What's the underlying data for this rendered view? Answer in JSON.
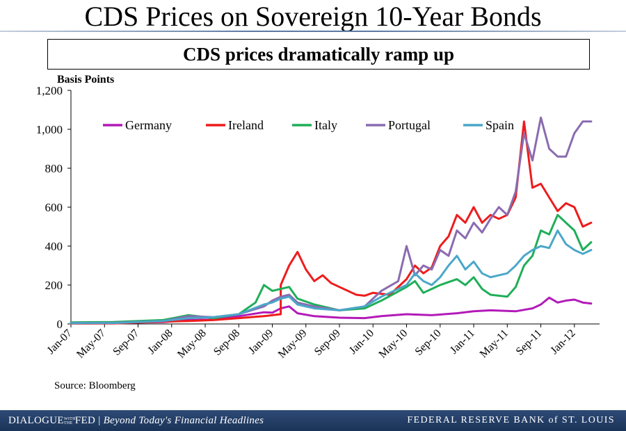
{
  "slide": {
    "title": "CDS Prices on Sovereign 10-Year Bonds",
    "subtitle": "CDS prices dramatically ramp up",
    "source": "Source: Bloomberg"
  },
  "footer": {
    "left_brand": "DIALOGUE",
    "left_small": "WITH THE",
    "left_brand2": "FED",
    "left_tagline": "Beyond Today's Financial Headlines",
    "right_text": "FEDERAL RESERVE BANK of ST. LOUIS"
  },
  "chart_data": {
    "type": "line",
    "title": "",
    "ylabel": "Basis Points",
    "xlabel": "",
    "ylim": [
      0,
      1200
    ],
    "yticks": [
      0,
      200,
      400,
      600,
      800,
      1000,
      1200
    ],
    "ytick_labels": [
      "0",
      "200",
      "400",
      "600",
      "800",
      "1,000",
      "1,200"
    ],
    "x_tick_labels": [
      "Jan-07",
      "May-07",
      "Sep-07",
      "Jan-08",
      "May-08",
      "Sep-08",
      "Jan-09",
      "May-09",
      "Sep-09",
      "Jan-10",
      "May-10",
      "Sep-10",
      "Jan-11",
      "May-11",
      "Sep-11",
      "Jan-12"
    ],
    "x_range": [
      "2007-01",
      "2012-03"
    ],
    "legend_position": "top",
    "grid": false,
    "series": [
      {
        "name": "Germany",
        "color": "#b31ab8",
        "points": [
          [
            "2007-01",
            5
          ],
          [
            "2007-06",
            6
          ],
          [
            "2007-12",
            10
          ],
          [
            "2008-03",
            20
          ],
          [
            "2008-06",
            22
          ],
          [
            "2008-09",
            40
          ],
          [
            "2008-12",
            60
          ],
          [
            "2009-01",
            58
          ],
          [
            "2009-02",
            80
          ],
          [
            "2009-03",
            90
          ],
          [
            "2009-04",
            55
          ],
          [
            "2009-06",
            40
          ],
          [
            "2009-09",
            32
          ],
          [
            "2009-12",
            30
          ],
          [
            "2010-02",
            40
          ],
          [
            "2010-05",
            50
          ],
          [
            "2010-08",
            45
          ],
          [
            "2010-11",
            55
          ],
          [
            "2011-01",
            65
          ],
          [
            "2011-03",
            70
          ],
          [
            "2011-06",
            65
          ],
          [
            "2011-08",
            80
          ],
          [
            "2011-09",
            100
          ],
          [
            "2011-10",
            135
          ],
          [
            "2011-11",
            110
          ],
          [
            "2011-12",
            120
          ],
          [
            "2012-01",
            125
          ],
          [
            "2012-02",
            110
          ],
          [
            "2012-03",
            105
          ]
        ]
      },
      {
        "name": "Ireland",
        "color": "#ee1c1c",
        "points": [
          [
            "2007-01",
            2
          ],
          [
            "2007-06",
            3
          ],
          [
            "2007-12",
            12
          ],
          [
            "2008-03",
            15
          ],
          [
            "2008-06",
            20
          ],
          [
            "2008-09",
            30
          ],
          [
            "2008-12",
            40
          ],
          [
            "2009-02",
            50
          ],
          [
            "2009-02",
            200
          ],
          [
            "2009-03",
            300
          ],
          [
            "2009-04",
            370
          ],
          [
            "2009-05",
            280
          ],
          [
            "2009-06",
            220
          ],
          [
            "2009-07",
            250
          ],
          [
            "2009-08",
            210
          ],
          [
            "2009-09",
            190
          ],
          [
            "2009-11",
            150
          ],
          [
            "2009-12",
            145
          ],
          [
            "2010-01",
            160
          ],
          [
            "2010-03",
            150
          ],
          [
            "2010-05",
            230
          ],
          [
            "2010-06",
            300
          ],
          [
            "2010-07",
            260
          ],
          [
            "2010-08",
            290
          ],
          [
            "2010-09",
            400
          ],
          [
            "2010-10",
            450
          ],
          [
            "2010-11",
            560
          ],
          [
            "2010-12",
            520
          ],
          [
            "2011-01",
            600
          ],
          [
            "2011-02",
            520
          ],
          [
            "2011-03",
            560
          ],
          [
            "2011-04",
            540
          ],
          [
            "2011-05",
            560
          ],
          [
            "2011-06",
            650
          ],
          [
            "2011-07",
            1040
          ],
          [
            "2011-08",
            700
          ],
          [
            "2011-09",
            720
          ],
          [
            "2011-10",
            650
          ],
          [
            "2011-11",
            580
          ],
          [
            "2011-12",
            620
          ],
          [
            "2012-01",
            600
          ],
          [
            "2012-02",
            500
          ],
          [
            "2012-03",
            520
          ]
        ]
      },
      {
        "name": "Italy",
        "color": "#1fae58",
        "points": [
          [
            "2007-01",
            8
          ],
          [
            "2007-06",
            10
          ],
          [
            "2007-12",
            20
          ],
          [
            "2008-03",
            45
          ],
          [
            "2008-06",
            30
          ],
          [
            "2008-09",
            50
          ],
          [
            "2008-11",
            110
          ],
          [
            "2008-12",
            200
          ],
          [
            "2009-01",
            170
          ],
          [
            "2009-02",
            180
          ],
          [
            "2009-03",
            190
          ],
          [
            "2009-04",
            130
          ],
          [
            "2009-06",
            100
          ],
          [
            "2009-09",
            70
          ],
          [
            "2009-12",
            80
          ],
          [
            "2010-02",
            120
          ],
          [
            "2010-05",
            190
          ],
          [
            "2010-06",
            220
          ],
          [
            "2010-07",
            160
          ],
          [
            "2010-09",
            200
          ],
          [
            "2010-11",
            230
          ],
          [
            "2010-12",
            200
          ],
          [
            "2011-01",
            240
          ],
          [
            "2011-02",
            180
          ],
          [
            "2011-03",
            150
          ],
          [
            "2011-05",
            140
          ],
          [
            "2011-06",
            190
          ],
          [
            "2011-07",
            300
          ],
          [
            "2011-08",
            350
          ],
          [
            "2011-09",
            480
          ],
          [
            "2011-10",
            460
          ],
          [
            "2011-11",
            560
          ],
          [
            "2011-12",
            520
          ],
          [
            "2012-01",
            480
          ],
          [
            "2012-02",
            380
          ],
          [
            "2012-03",
            420
          ]
        ]
      },
      {
        "name": "Portugal",
        "color": "#8a6bb0",
        "points": [
          [
            "2007-01",
            5
          ],
          [
            "2007-06",
            6
          ],
          [
            "2007-12",
            15
          ],
          [
            "2008-03",
            40
          ],
          [
            "2008-06",
            35
          ],
          [
            "2008-09",
            50
          ],
          [
            "2008-12",
            90
          ],
          [
            "2009-01",
            120
          ],
          [
            "2009-02",
            140
          ],
          [
            "2009-03",
            150
          ],
          [
            "2009-04",
            110
          ],
          [
            "2009-06",
            90
          ],
          [
            "2009-09",
            70
          ],
          [
            "2009-12",
            90
          ],
          [
            "2010-02",
            170
          ],
          [
            "2010-04",
            220
          ],
          [
            "2010-05",
            400
          ],
          [
            "2010-06",
            250
          ],
          [
            "2010-07",
            300
          ],
          [
            "2010-08",
            280
          ],
          [
            "2010-09",
            380
          ],
          [
            "2010-10",
            350
          ],
          [
            "2010-11",
            480
          ],
          [
            "2010-12",
            440
          ],
          [
            "2011-01",
            520
          ],
          [
            "2011-02",
            470
          ],
          [
            "2011-03",
            540
          ],
          [
            "2011-04",
            600
          ],
          [
            "2011-05",
            560
          ],
          [
            "2011-06",
            680
          ],
          [
            "2011-07",
            980
          ],
          [
            "2011-08",
            840
          ],
          [
            "2011-09",
            1060
          ],
          [
            "2011-10",
            900
          ],
          [
            "2011-11",
            860
          ],
          [
            "2011-12",
            860
          ],
          [
            "2012-01",
            980
          ],
          [
            "2012-02",
            1040
          ],
          [
            "2012-03",
            1040
          ]
        ]
      },
      {
        "name": "Spain",
        "color": "#4aa7c9",
        "points": [
          [
            "2007-01",
            4
          ],
          [
            "2007-06",
            5
          ],
          [
            "2007-12",
            15
          ],
          [
            "2008-03",
            30
          ],
          [
            "2008-06",
            35
          ],
          [
            "2008-09",
            50
          ],
          [
            "2008-12",
            100
          ],
          [
            "2009-01",
            110
          ],
          [
            "2009-02",
            130
          ],
          [
            "2009-03",
            140
          ],
          [
            "2009-04",
            100
          ],
          [
            "2009-06",
            80
          ],
          [
            "2009-09",
            70
          ],
          [
            "2009-12",
            90
          ],
          [
            "2010-02",
            140
          ],
          [
            "2010-05",
            200
          ],
          [
            "2010-06",
            260
          ],
          [
            "2010-07",
            220
          ],
          [
            "2010-08",
            200
          ],
          [
            "2010-09",
            240
          ],
          [
            "2010-10",
            300
          ],
          [
            "2010-11",
            350
          ],
          [
            "2010-12",
            280
          ],
          [
            "2011-01",
            320
          ],
          [
            "2011-02",
            260
          ],
          [
            "2011-03",
            240
          ],
          [
            "2011-05",
            260
          ],
          [
            "2011-06",
            300
          ],
          [
            "2011-07",
            350
          ],
          [
            "2011-08",
            380
          ],
          [
            "2011-09",
            400
          ],
          [
            "2011-10",
            390
          ],
          [
            "2011-11",
            480
          ],
          [
            "2011-12",
            410
          ],
          [
            "2012-01",
            380
          ],
          [
            "2012-02",
            360
          ],
          [
            "2012-03",
            380
          ]
        ]
      }
    ]
  }
}
